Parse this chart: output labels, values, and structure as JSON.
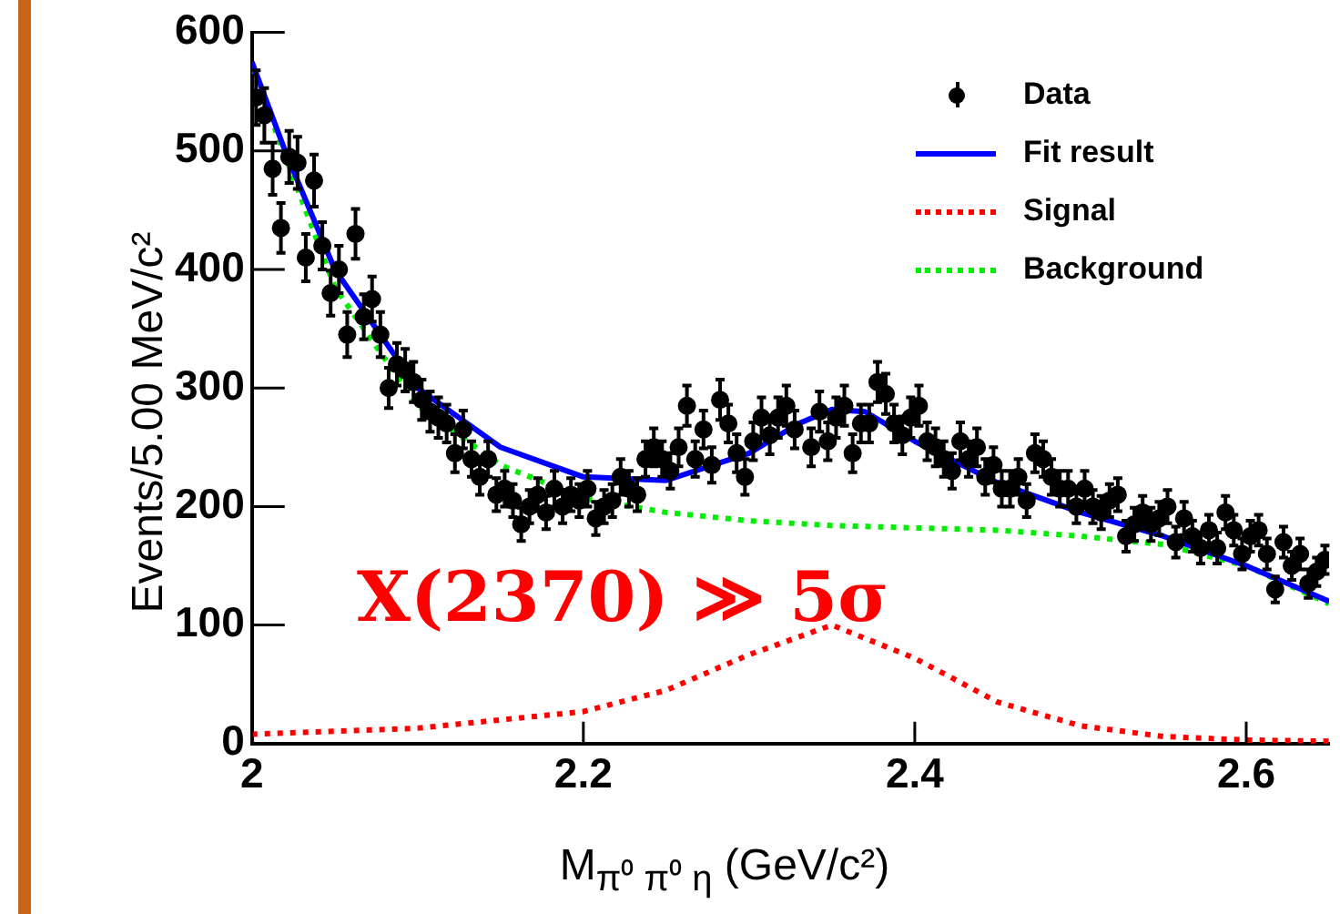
{
  "chart_data": {
    "type": "scatter",
    "xlabel": "M$_{π⁰ π⁰ η}$ (GeV/c²)",
    "ylabel": "Events/5.00 MeV/c²",
    "annotations": [
      "X(2370) ≫ 5σ"
    ],
    "xlim": [
      2,
      2.65
    ],
    "ylim": [
      0,
      600
    ],
    "xticks": [
      2,
      2.2,
      2.4,
      2.6
    ],
    "yticks": [
      0,
      100,
      200,
      300,
      400,
      500,
      600
    ],
    "grid": false,
    "legend": "top right",
    "series": [
      {
        "name": "Data",
        "color": "#000000",
        "marker": "circle",
        "x": [
          2.0025,
          2.0075,
          2.0125,
          2.0175,
          2.0225,
          2.0275,
          2.0325,
          2.0375,
          2.0425,
          2.0475,
          2.0525,
          2.0575,
          2.0625,
          2.0675,
          2.0725,
          2.0775,
          2.0825,
          2.0875,
          2.0925,
          2.0975,
          2.1025,
          2.1075,
          2.1125,
          2.1175,
          2.1225,
          2.1275,
          2.1325,
          2.1375,
          2.1425,
          2.1475,
          2.1525,
          2.1575,
          2.1625,
          2.1675,
          2.1725,
          2.1775,
          2.1825,
          2.1875,
          2.1925,
          2.1975,
          2.2025,
          2.2075,
          2.2125,
          2.2175,
          2.2225,
          2.2275,
          2.2325,
          2.2375,
          2.2425,
          2.2475,
          2.2525,
          2.2575,
          2.2625,
          2.2675,
          2.2725,
          2.2775,
          2.2825,
          2.2875,
          2.2925,
          2.2975,
          2.3025,
          2.3075,
          2.3125,
          2.3175,
          2.3225,
          2.3275,
          2.3375,
          2.3425,
          2.3475,
          2.3525,
          2.3575,
          2.3625,
          2.3675,
          2.3725,
          2.3775,
          2.3825,
          2.3875,
          2.3925,
          2.3975,
          2.4025,
          2.4075,
          2.4125,
          2.4175,
          2.4225,
          2.4275,
          2.4325,
          2.4375,
          2.4425,
          2.4475,
          2.4525,
          2.4575,
          2.4625,
          2.4675,
          2.4725,
          2.4775,
          2.4825,
          2.4875,
          2.4925,
          2.4975,
          2.5025,
          2.5075,
          2.5125,
          2.5175,
          2.5225,
          2.5275,
          2.5325,
          2.5375,
          2.5425,
          2.5475,
          2.5525,
          2.5575,
          2.5625,
          2.5675,
          2.5725,
          2.5775,
          2.5825,
          2.5875,
          2.5925,
          2.5975,
          2.6025,
          2.6075,
          2.6125,
          2.6175,
          2.6225,
          2.6275,
          2.6325,
          2.6375,
          2.6425,
          2.6475
        ],
        "values": [
          545,
          530,
          485,
          435,
          495,
          490,
          410,
          475,
          420,
          380,
          400,
          345,
          430,
          360,
          375,
          345,
          300,
          320,
          315,
          305,
          290,
          280,
          275,
          270,
          245,
          265,
          240,
          225,
          240,
          210,
          215,
          205,
          185,
          200,
          210,
          195,
          215,
          200,
          210,
          205,
          215,
          190,
          200,
          205,
          225,
          215,
          210,
          240,
          250,
          240,
          230,
          250,
          285,
          240,
          265,
          235,
          290,
          270,
          245,
          225,
          255,
          275,
          260,
          275,
          285,
          265,
          250,
          280,
          255,
          275,
          285,
          245,
          270,
          270,
          305,
          295,
          270,
          260,
          275,
          285,
          255,
          250,
          240,
          230,
          255,
          240,
          250,
          225,
          235,
          215,
          215,
          225,
          205,
          245,
          240,
          225,
          215,
          215,
          200,
          215,
          200,
          195,
          205,
          210,
          175,
          185,
          195,
          185,
          190,
          200,
          170,
          190,
          175,
          165,
          180,
          165,
          195,
          180,
          160,
          175,
          180,
          160,
          130,
          170,
          150,
          160,
          135,
          145,
          155
        ],
        "errors": [
          23,
          23,
          22,
          21,
          22,
          22,
          20,
          22,
          20,
          19,
          20,
          19,
          21,
          19,
          19,
          19,
          17,
          18,
          18,
          17,
          17,
          17,
          17,
          16,
          16,
          16,
          15,
          15,
          15,
          14,
          15,
          14,
          14,
          14,
          14,
          14,
          15,
          14,
          14,
          14,
          15,
          14,
          14,
          14,
          15,
          15,
          14,
          15,
          16,
          15,
          15,
          16,
          17,
          15,
          16,
          15,
          17,
          16,
          16,
          15,
          16,
          17,
          16,
          17,
          17,
          16,
          16,
          17,
          16,
          17,
          17,
          16,
          16,
          16,
          17,
          17,
          16,
          16,
          17,
          17,
          16,
          16,
          15,
          15,
          16,
          15,
          16,
          15,
          15,
          15,
          15,
          15,
          14,
          16,
          15,
          15,
          15,
          15,
          14,
          15,
          14,
          14,
          14,
          14,
          13,
          14,
          14,
          14,
          14,
          14,
          13,
          14,
          13,
          13,
          13,
          13,
          14,
          13,
          13,
          13,
          13,
          13,
          11,
          13,
          12,
          13,
          12,
          12,
          12
        ]
      },
      {
        "name": "Fit result",
        "type": "line",
        "color": "#0000ff",
        "line_style": "solid",
        "marker": "none",
        "x": [
          2.0,
          2.02,
          2.05,
          2.1,
          2.15,
          2.2,
          2.25,
          2.3,
          2.33,
          2.35,
          2.37,
          2.4,
          2.45,
          2.5,
          2.55,
          2.6,
          2.65
        ],
        "values": [
          575,
          500,
          400,
          300,
          250,
          225,
          222,
          245,
          270,
          282,
          280,
          255,
          220,
          195,
          175,
          150,
          120
        ]
      },
      {
        "name": "Signal",
        "type": "line",
        "color": "#ff0000",
        "line_style": "dotted",
        "marker": "none",
        "x": [
          2.0,
          2.1,
          2.2,
          2.25,
          2.3,
          2.35,
          2.4,
          2.45,
          2.5,
          2.55,
          2.6,
          2.65
        ],
        "values": [
          8,
          13,
          27,
          45,
          75,
          100,
          72,
          35,
          15,
          6,
          3,
          2
        ]
      },
      {
        "name": "Background",
        "type": "line",
        "color": "#00ee00",
        "line_style": "dotted",
        "marker": "none",
        "x": [
          2.0,
          2.05,
          2.1,
          2.15,
          2.2,
          2.25,
          2.3,
          2.35,
          2.4,
          2.45,
          2.5,
          2.55,
          2.6,
          2.65
        ],
        "values": [
          570,
          385,
          285,
          235,
          207,
          195,
          188,
          184,
          182,
          180,
          175,
          168,
          150,
          118
        ]
      }
    ]
  }
}
